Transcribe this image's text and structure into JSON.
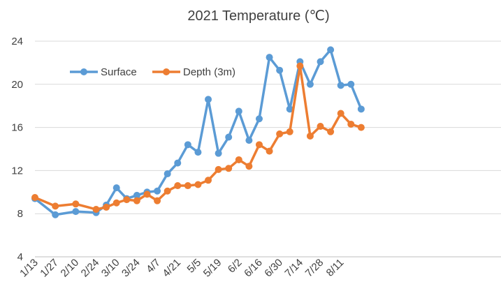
{
  "chart_data": {
    "type": "line",
    "title": "2021 Temperature (℃)",
    "xlabel": "",
    "ylabel": "",
    "ylim": [
      4,
      24
    ],
    "yticks": [
      4,
      8,
      12,
      16,
      20,
      24
    ],
    "grid": true,
    "legend_position": "top-left",
    "x_tick_labels": [
      "1/13",
      "1/27",
      "2/10",
      "2/24",
      "3/10",
      "3/24",
      "4/7",
      "4/21",
      "5/5",
      "5/19",
      "6/2",
      "6/16",
      "6/30",
      "7/14",
      "7/28",
      "8/11"
    ],
    "x": [
      "1/13",
      "1/20",
      "1/27",
      "2/3",
      "2/10",
      "2/17",
      "2/24",
      "3/3",
      "3/10",
      "3/17",
      "3/24",
      "3/31",
      "4/7",
      "4/14",
      "4/21",
      "4/28",
      "5/5",
      "5/12",
      "5/19",
      "5/26",
      "6/2",
      "6/9",
      "6/16",
      "6/23",
      "6/30",
      "7/7",
      "7/14",
      "7/21",
      "7/28",
      "8/4",
      "8/11",
      "8/18",
      "8/25"
    ],
    "series": [
      {
        "name": "Surface",
        "color": "#5B9BD5",
        "values": [
          9.4,
          null,
          7.9,
          null,
          8.2,
          null,
          8.1,
          8.8,
          10.4,
          9.4,
          9.7,
          10.0,
          10.1,
          11.7,
          12.7,
          14.4,
          13.7,
          18.6,
          13.6,
          15.1,
          17.5,
          14.8,
          16.8,
          22.5,
          21.3,
          17.7,
          22.1,
          20.0,
          22.1,
          23.2,
          19.9,
          20.0,
          17.7
        ]
      },
      {
        "name": "Depth (3m)",
        "color": "#ED7D31",
        "values": [
          9.5,
          null,
          8.7,
          null,
          8.9,
          null,
          8.4,
          8.6,
          9.0,
          9.3,
          9.2,
          9.8,
          9.2,
          10.1,
          10.6,
          10.6,
          10.7,
          11.1,
          12.1,
          12.2,
          13.0,
          12.4,
          14.4,
          13.8,
          15.4,
          15.6,
          21.7,
          15.2,
          16.1,
          15.6,
          17.3,
          16.3,
          16.0
        ]
      }
    ]
  }
}
